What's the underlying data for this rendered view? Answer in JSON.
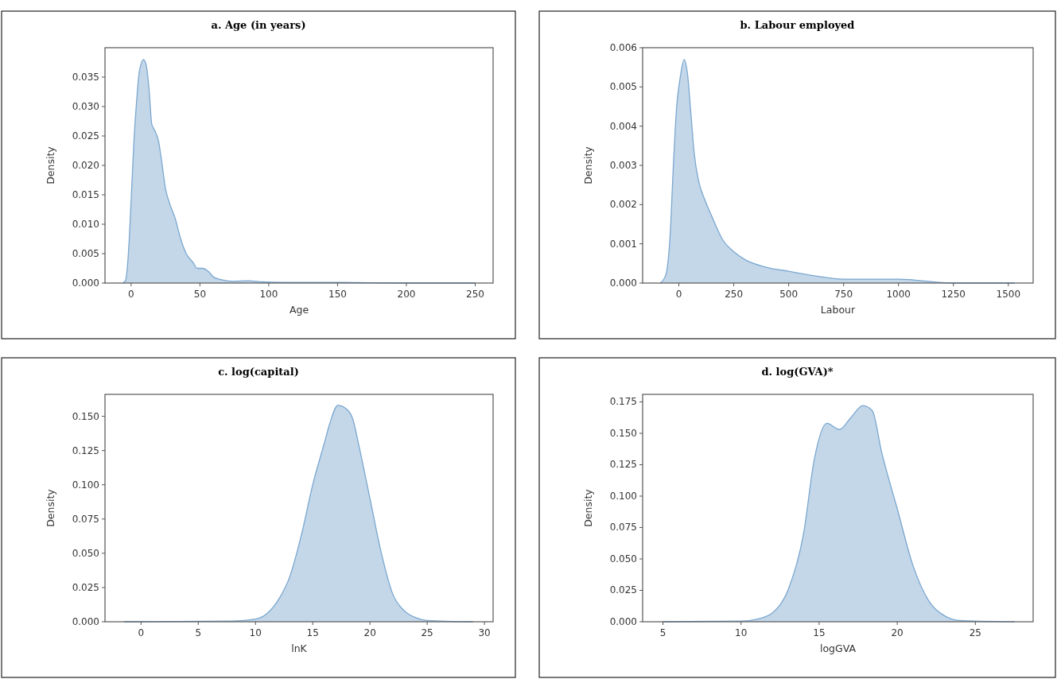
{
  "chart_data": [
    {
      "type": "area",
      "title": "a. Age (in years)",
      "xlabel": "Age",
      "ylabel": "Density",
      "xlim": [
        -19,
        263
      ],
      "xticks": [
        0,
        50,
        100,
        150,
        200,
        250
      ],
      "ylim": [
        0,
        0.04
      ],
      "yticks": [
        {
          "value": 0,
          "label": "0.000"
        },
        {
          "value": 0.005,
          "label": "0.005"
        },
        {
          "value": 0.01,
          "label": "0.010"
        },
        {
          "value": 0.015,
          "label": "0.015"
        },
        {
          "value": 0.02,
          "label": "0.020"
        },
        {
          "value": 0.025,
          "label": "0.025"
        },
        {
          "value": 0.03,
          "label": "0.030"
        },
        {
          "value": 0.035,
          "label": "0.035"
        }
      ],
      "grid": false,
      "series": [
        {
          "color": "#7ba7cf",
          "x": [
            -6,
            -4,
            -2,
            0,
            2,
            4,
            6,
            9,
            11,
            13,
            15,
            17,
            20,
            22,
            25,
            28,
            32,
            36,
            40,
            45,
            48,
            52,
            56,
            60,
            65,
            75,
            85,
            95,
            110,
            150,
            200,
            250
          ],
          "values": [
            0,
            0.0005,
            0.005,
            0.014,
            0.024,
            0.031,
            0.036,
            0.038,
            0.037,
            0.033,
            0.027,
            0.026,
            0.024,
            0.021,
            0.016,
            0.0135,
            0.011,
            0.0075,
            0.005,
            0.0035,
            0.0025,
            0.0025,
            0.002,
            0.001,
            0.0006,
            0.0003,
            0.0004,
            0.0002,
            0.0001,
            0.0001,
            0,
            0
          ]
        }
      ]
    },
    {
      "type": "area",
      "title": "b. Labour employed",
      "xlabel": "Labour",
      "ylabel": "Density",
      "xlim": [
        -165,
        1613
      ],
      "xticks": [
        0,
        250,
        500,
        750,
        1000,
        1250,
        1500
      ],
      "ylim": [
        0,
        0.006
      ],
      "yticks": [
        {
          "value": 0,
          "label": "0.000"
        },
        {
          "value": 0.001,
          "label": "0.001"
        },
        {
          "value": 0.002,
          "label": "0.002"
        },
        {
          "value": 0.003,
          "label": "0.003"
        },
        {
          "value": 0.004,
          "label": "0.004"
        },
        {
          "value": 0.005,
          "label": "0.005"
        },
        {
          "value": 0.006,
          "label": "0.006"
        }
      ],
      "grid": false,
      "series": [
        {
          "color": "#7ba7cf",
          "x": [
            -85,
            -60,
            -40,
            -25,
            -10,
            5,
            24,
            40,
            55,
            70,
            90,
            120,
            150,
            200,
            250,
            300,
            400,
            500,
            600,
            750,
            1000,
            1250,
            1530
          ],
          "values": [
            0,
            0.0002,
            0.0012,
            0.003,
            0.0045,
            0.0052,
            0.0057,
            0.0053,
            0.0043,
            0.0033,
            0.0026,
            0.0021,
            0.0017,
            0.0011,
            0.0008,
            0.0006,
            0.0004,
            0.0003,
            0.0002,
            0.0001,
            0.0001,
            0,
            0
          ]
        }
      ]
    },
    {
      "type": "area",
      "title": "c. log(capital)",
      "xlabel": "lnK",
      "ylabel": "Density",
      "xlim": [
        -3.15,
        30.76
      ],
      "xticks": [
        0,
        5,
        10,
        15,
        20,
        25,
        30
      ],
      "ylim": [
        0,
        0.166
      ],
      "yticks": [
        {
          "value": 0,
          "label": "0.000"
        },
        {
          "value": 0.025,
          "label": "0.025"
        },
        {
          "value": 0.05,
          "label": "0.050"
        },
        {
          "value": 0.075,
          "label": "0.075"
        },
        {
          "value": 0.1,
          "label": "0.100"
        },
        {
          "value": 0.125,
          "label": "0.125"
        },
        {
          "value": 0.15,
          "label": "0.150"
        }
      ],
      "grid": false,
      "series": [
        {
          "color": "#7ba7cf",
          "x": [
            -1.5,
            8,
            10,
            11,
            12,
            13,
            14,
            15,
            16,
            16.5,
            17.2,
            18,
            18.5,
            19,
            20,
            21,
            22,
            23,
            24,
            25,
            29
          ],
          "values": [
            0,
            0.0005,
            0.002,
            0.006,
            0.016,
            0.033,
            0.063,
            0.1,
            0.13,
            0.145,
            0.158,
            0.155,
            0.148,
            0.13,
            0.09,
            0.05,
            0.02,
            0.008,
            0.003,
            0.001,
            0
          ]
        }
      ]
    },
    {
      "type": "area",
      "title": "d. log(GVA)*",
      "xlabel": "logGVA",
      "ylabel": "Density",
      "xlim": [
        3.7,
        28.7
      ],
      "xticks": [
        5,
        10,
        15,
        20,
        25
      ],
      "ylim": [
        0,
        0.181
      ],
      "yticks": [
        {
          "value": 0,
          "label": "0.000"
        },
        {
          "value": 0.025,
          "label": "0.025"
        },
        {
          "value": 0.05,
          "label": "0.050"
        },
        {
          "value": 0.075,
          "label": "0.075"
        },
        {
          "value": 0.1,
          "label": "0.100"
        },
        {
          "value": 0.125,
          "label": "0.125"
        },
        {
          "value": 0.15,
          "label": "0.150"
        },
        {
          "value": 0.175,
          "label": "0.175"
        }
      ],
      "grid": false,
      "series": [
        {
          "color": "#7ba7cf",
          "x": [
            5,
            10,
            11,
            12,
            13,
            14,
            14.7,
            15.5,
            16.3,
            17,
            17.8,
            18.4,
            19,
            20,
            21,
            22,
            23,
            24,
            27.5
          ],
          "values": [
            0,
            0.0005,
            0.002,
            0.007,
            0.025,
            0.07,
            0.13,
            0.158,
            0.153,
            0.162,
            0.172,
            0.168,
            0.135,
            0.09,
            0.045,
            0.017,
            0.005,
            0.001,
            0
          ]
        }
      ]
    }
  ]
}
